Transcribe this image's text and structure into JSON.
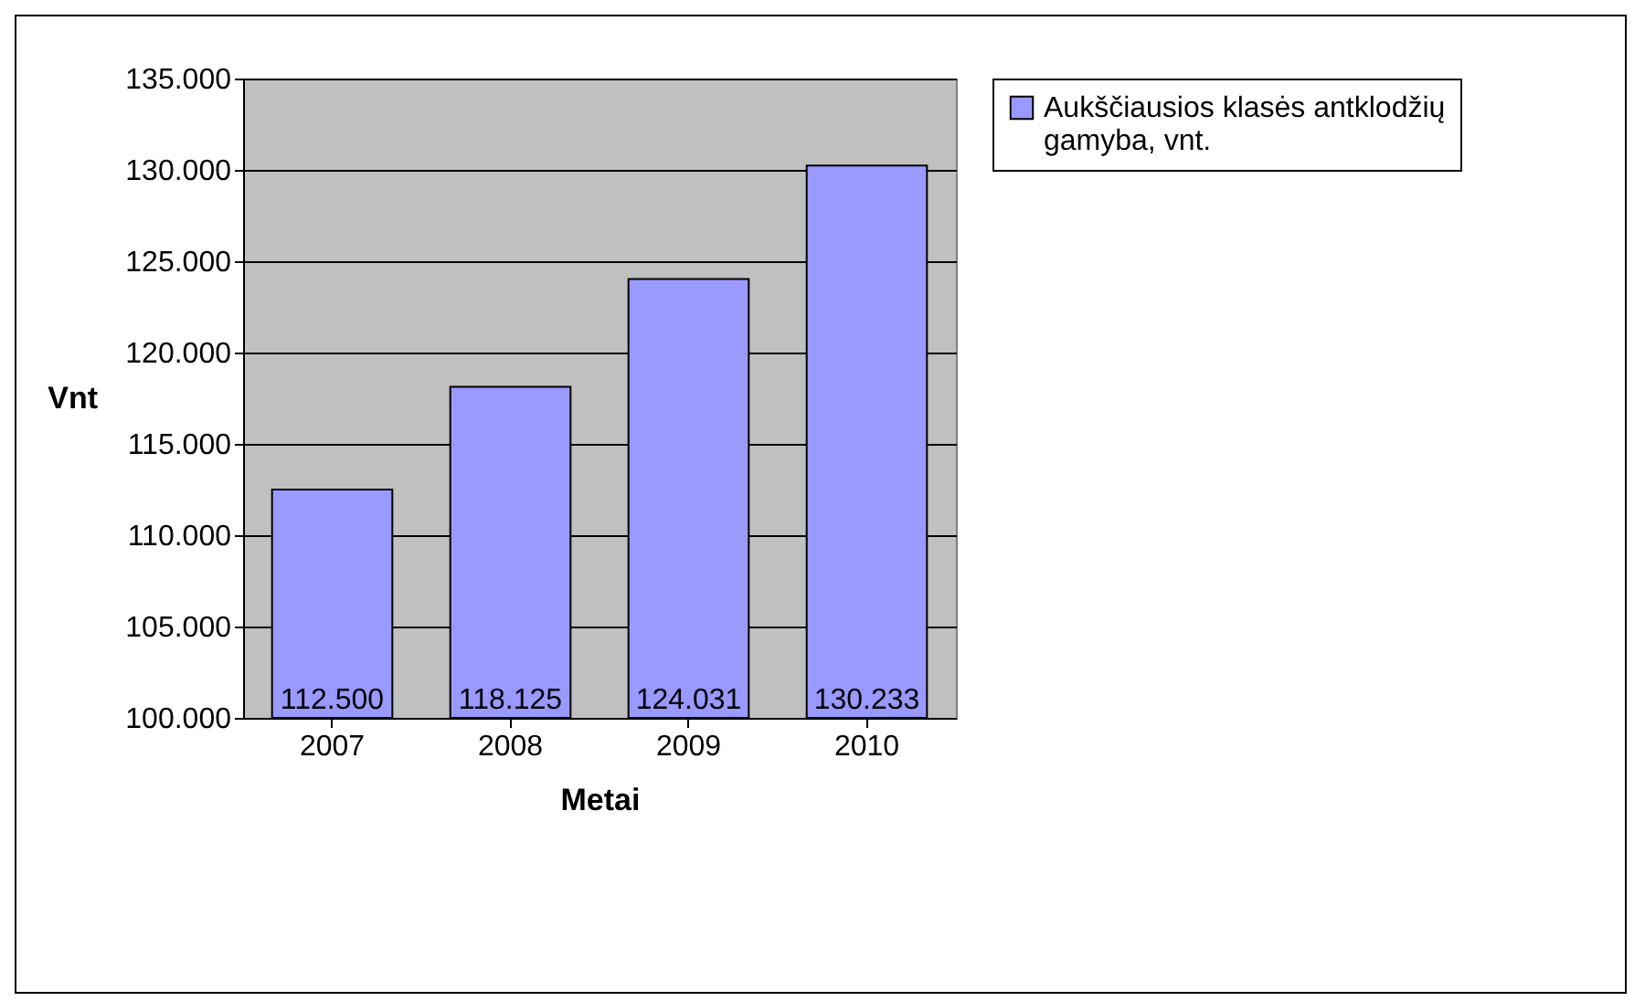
{
  "chart_data": {
    "type": "bar",
    "xlabel": "Metai",
    "ylabel": "Vnt",
    "categories": [
      "2007",
      "2008",
      "2009",
      "2010"
    ],
    "series": [
      {
        "name": "Aukščiausios klasės antklodžių gamyba, vnt.",
        "color": "#9999ff",
        "values": [
          112500,
          118125,
          124031,
          130233
        ],
        "value_labels": [
          "112.500",
          "118.125",
          "124.031",
          "130.233"
        ]
      }
    ],
    "ylim": [
      100000,
      135000
    ],
    "yticks": [
      {
        "value": 100000,
        "label": "100.000"
      },
      {
        "value": 105000,
        "label": "105.000"
      },
      {
        "value": 110000,
        "label": "110.000"
      },
      {
        "value": 115000,
        "label": "115.000"
      },
      {
        "value": 120000,
        "label": "120.000"
      },
      {
        "value": 125000,
        "label": "125.000"
      },
      {
        "value": 130000,
        "label": "130.000"
      },
      {
        "value": 135000,
        "label": "135.000"
      }
    ],
    "grid": "y",
    "legend": "right"
  }
}
